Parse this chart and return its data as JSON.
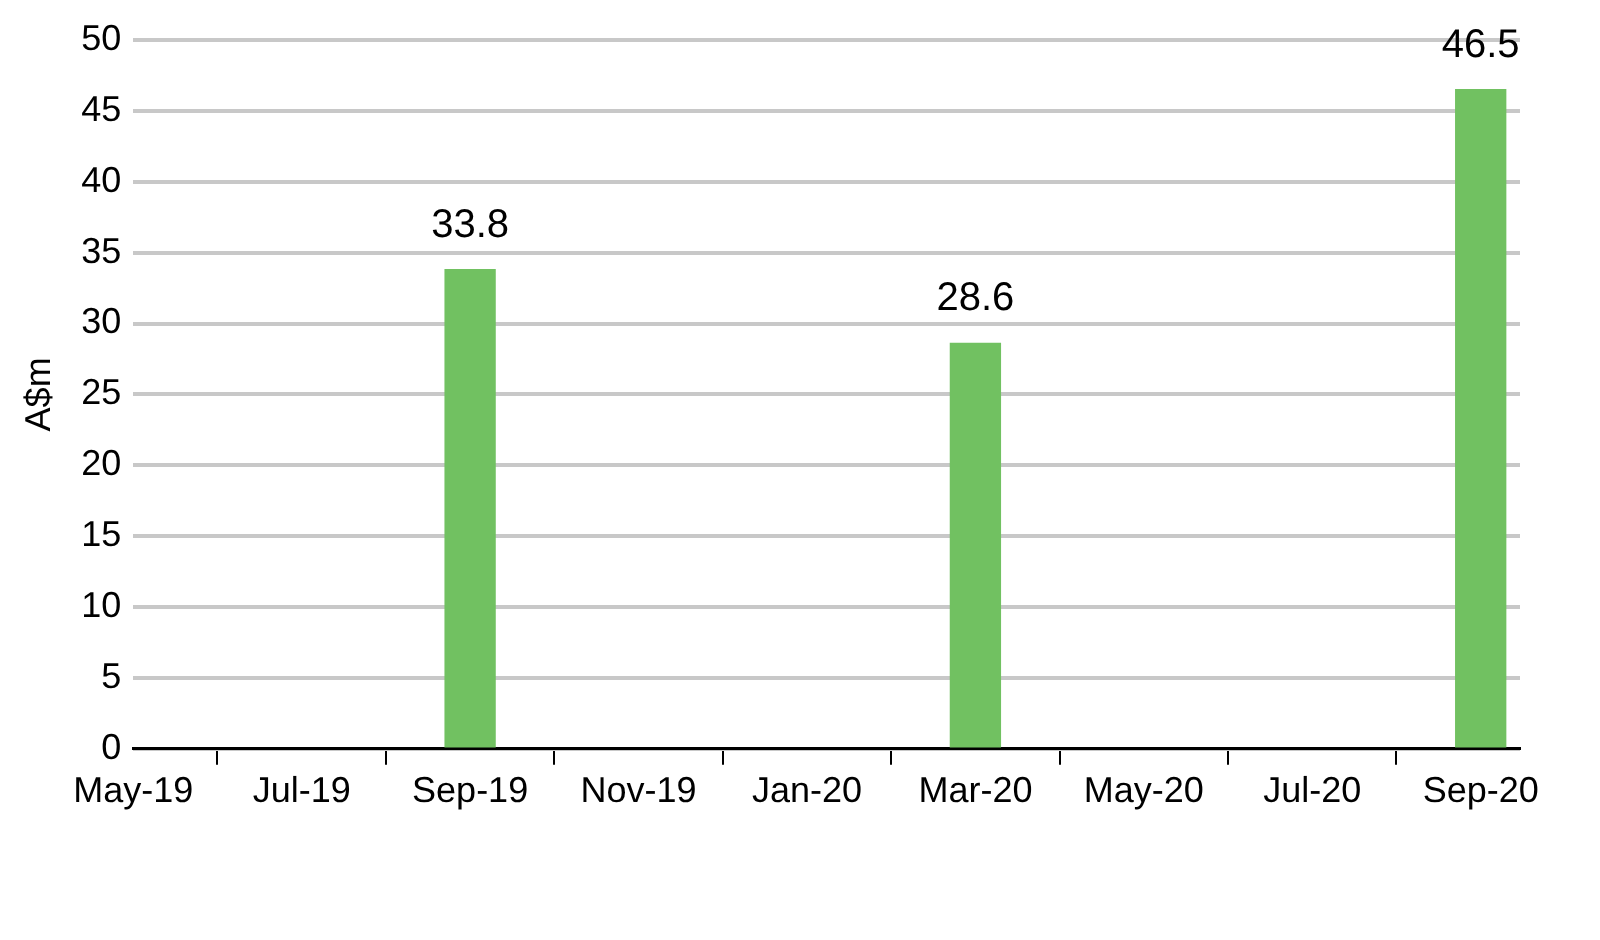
{
  "chart_data": {
    "type": "bar",
    "ylabel": "A$m",
    "x": [
      "2019-09",
      "2020-03",
      "2020-09"
    ],
    "values": [
      33.8,
      28.6,
      46.5
    ],
    "color": "#71c161",
    "xlim": [
      "2019-05-01",
      "2020-09-15"
    ],
    "xticks": [
      {
        "value": "2019-05",
        "label": "May-19"
      },
      {
        "value": "2019-07",
        "label": "Jul-19"
      },
      {
        "value": "2019-09",
        "label": "Sep-19"
      },
      {
        "value": "2019-11",
        "label": "Nov-19"
      },
      {
        "value": "2020-01",
        "label": "Jan-20"
      },
      {
        "value": "2020-03",
        "label": "Mar-20"
      },
      {
        "value": "2020-05",
        "label": "May-20"
      },
      {
        "value": "2020-07",
        "label": "Jul-20"
      },
      {
        "value": "2020-09",
        "label": "Sep-20"
      }
    ],
    "ylim": [
      0,
      50
    ],
    "yticks": [
      0,
      5,
      10,
      15,
      20,
      25,
      30,
      35,
      40,
      45,
      50
    ],
    "grid": "y",
    "legend": false,
    "data_labels": true
  }
}
